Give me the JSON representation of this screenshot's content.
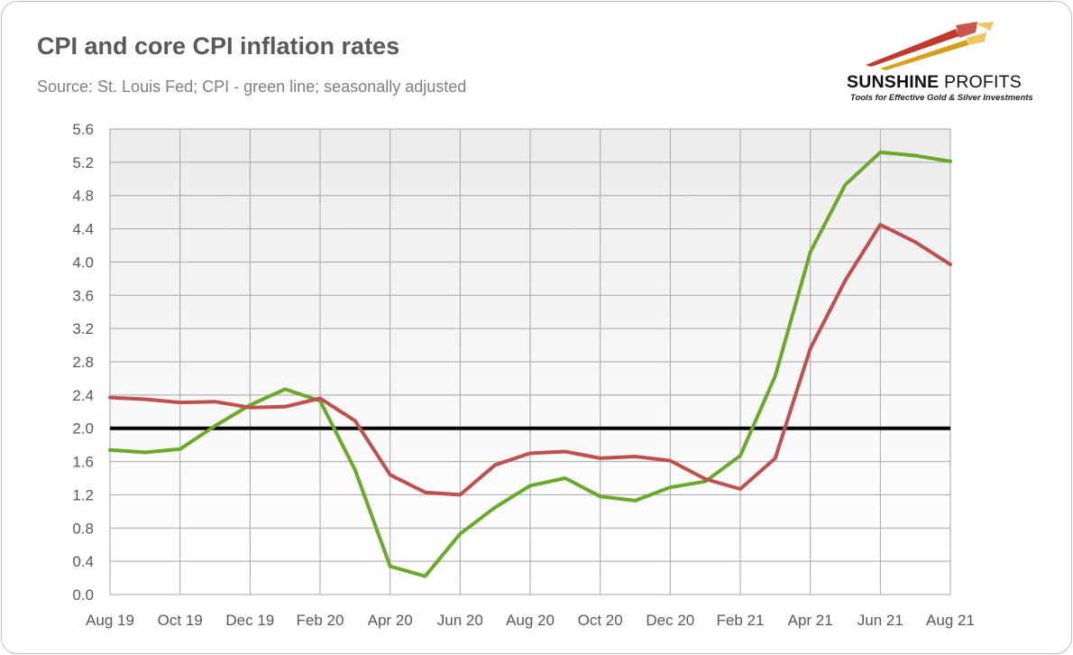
{
  "header": {
    "title": "CPI and core CPI inflation rates",
    "subtitle": "Source: St. Louis Fed; CPI - green line; seasonally adjusted"
  },
  "logo": {
    "name_bold": "SUNSHINE",
    "name_light": "PROFITS",
    "tagline": "Tools for Effective Gold & Silver Investments",
    "colors": {
      "red": "#c0392b",
      "gold": "#d4a017"
    }
  },
  "chart_data": {
    "type": "line",
    "title": "CPI and core CPI inflation rates",
    "xlabel": "",
    "ylabel": "",
    "ylim": [
      0,
      5.6
    ],
    "ystep": 0.4,
    "grid": true,
    "x": [
      "Aug 19",
      "Sep 19",
      "Oct 19",
      "Nov 19",
      "Dec 19",
      "Jan 20",
      "Feb 20",
      "Mar 20",
      "Apr 20",
      "May 20",
      "Jun 20",
      "Jul 20",
      "Aug 20",
      "Sep 20",
      "Oct 20",
      "Nov 20",
      "Dec 20",
      "Jan 21",
      "Feb 21",
      "Mar 21",
      "Apr 21",
      "May 21",
      "Jun 21",
      "Jul 21",
      "Aug 21"
    ],
    "xticks": [
      "Aug 19",
      "Oct 19",
      "Dec 19",
      "Feb 20",
      "Apr 20",
      "Jun 20",
      "Aug 20",
      "Oct 20",
      "Dec 20",
      "Feb 21",
      "Apr 21",
      "Jun 21",
      "Aug 21"
    ],
    "yticks": [
      "0.0",
      "0.4",
      "0.8",
      "1.2",
      "1.6",
      "2.0",
      "2.4",
      "2.8",
      "3.2",
      "3.6",
      "4.0",
      "4.4",
      "4.8",
      "5.2",
      "5.6"
    ],
    "reference_line": {
      "y": 2.0,
      "color": "#000000"
    },
    "series": [
      {
        "name": "CPI",
        "color": "#6aaa2a",
        "values": [
          1.74,
          1.71,
          1.75,
          2.03,
          2.28,
          2.47,
          2.33,
          1.5,
          0.34,
          0.22,
          0.73,
          1.05,
          1.31,
          1.4,
          1.18,
          1.13,
          1.29,
          1.36,
          1.67,
          2.63,
          4.12,
          4.93,
          5.32,
          5.28,
          5.21
        ]
      },
      {
        "name": "Core CPI",
        "color": "#c0504d",
        "values": [
          2.37,
          2.35,
          2.31,
          2.32,
          2.25,
          2.26,
          2.36,
          2.09,
          1.44,
          1.23,
          1.2,
          1.56,
          1.7,
          1.72,
          1.64,
          1.66,
          1.61,
          1.39,
          1.27,
          1.64,
          2.96,
          3.78,
          4.45,
          4.24,
          3.97
        ]
      }
    ]
  }
}
